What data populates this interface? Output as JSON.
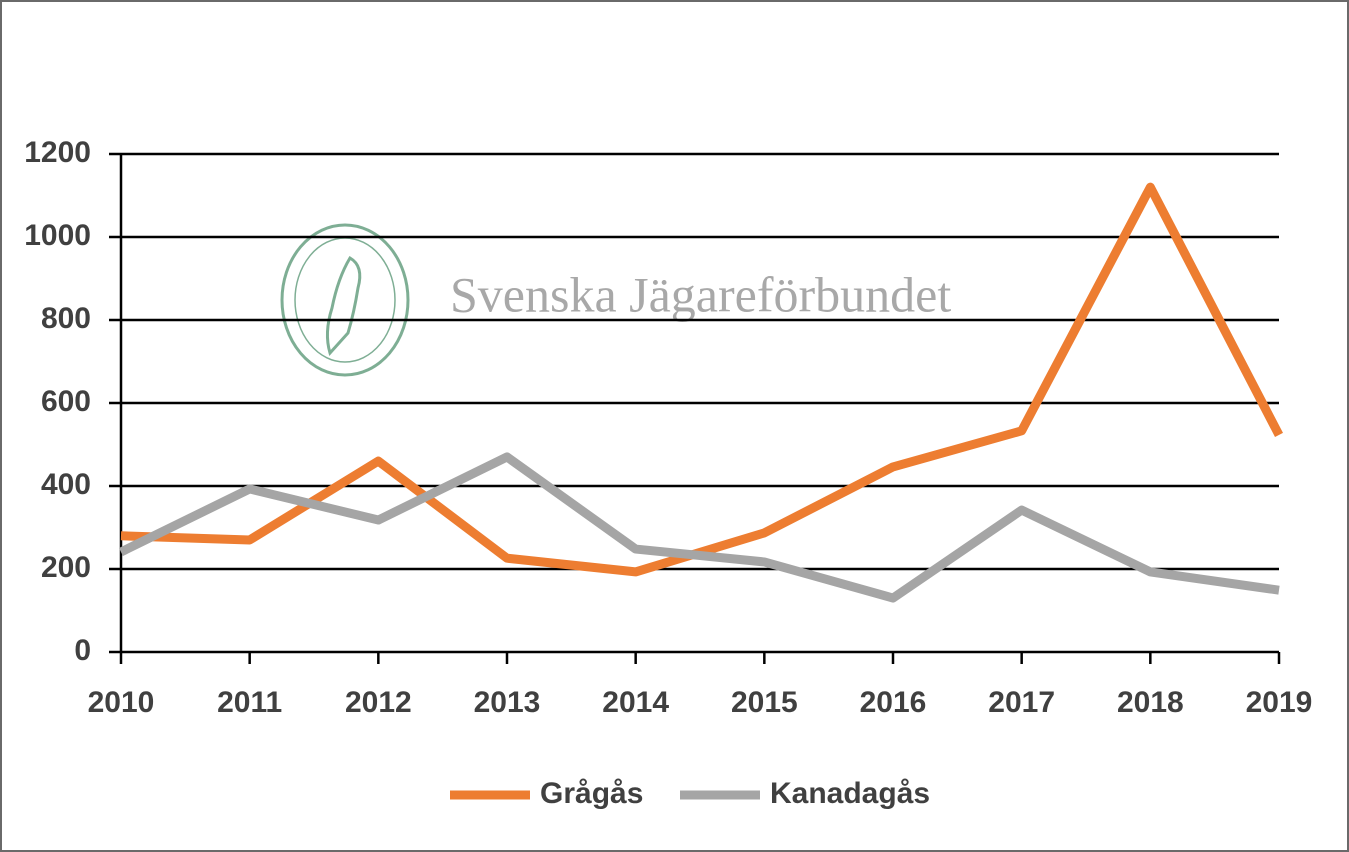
{
  "chart_data": {
    "type": "line",
    "watermark": "Svenska Jägareförbundet",
    "categories": [
      "2010",
      "2011",
      "2012",
      "2013",
      "2014",
      "2015",
      "2016",
      "2017",
      "2018",
      "2019"
    ],
    "series": [
      {
        "name": "Grågås",
        "color": "#ed7d31",
        "values": [
          280,
          270,
          460,
          226,
          193,
          287,
          446,
          533,
          1120,
          523
        ]
      },
      {
        "name": "Kanadagås",
        "color": "#a5a5a5",
        "values": [
          241,
          393,
          318,
          470,
          248,
          217,
          130,
          342,
          193,
          149
        ]
      }
    ],
    "ylim": [
      0,
      1200
    ],
    "yticks": [
      0,
      200,
      400,
      600,
      800,
      1000,
      1200
    ],
    "grid": true,
    "legend": "bottom"
  }
}
